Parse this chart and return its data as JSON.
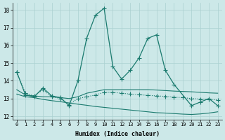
{
  "xlabel": "Humidex (Indice chaleur)",
  "bg_color": "#cce8e8",
  "line_color": "#1a7a6e",
  "grid_color": "#aad0d0",
  "xlim": [
    -0.5,
    23.5
  ],
  "ylim": [
    11.8,
    18.4
  ],
  "yticks": [
    12,
    13,
    14,
    15,
    16,
    17,
    18
  ],
  "xticks": [
    0,
    1,
    2,
    3,
    4,
    5,
    6,
    7,
    8,
    9,
    10,
    11,
    12,
    13,
    14,
    15,
    16,
    17,
    18,
    19,
    20,
    21,
    22,
    23
  ],
  "series": [
    {
      "x": [
        0,
        1,
        2,
        3,
        4,
        5,
        6,
        7,
        8,
        9,
        10,
        11,
        12,
        13,
        14,
        15,
        16,
        17,
        18,
        20,
        21,
        22,
        23
      ],
      "y": [
        14.5,
        13.2,
        13.1,
        13.6,
        13.15,
        13.05,
        12.6,
        14.0,
        16.4,
        17.7,
        18.1,
        14.8,
        14.1,
        14.6,
        15.3,
        16.4,
        16.6,
        14.6,
        13.8,
        12.6,
        12.8,
        13.0,
        12.6
      ],
      "linestyle": "-",
      "marker": true
    },
    {
      "x": [
        0,
        1,
        2,
        3,
        4,
        5,
        6,
        7,
        8,
        9,
        10,
        11,
        12,
        13,
        14,
        15,
        16,
        17,
        18,
        19,
        20,
        21,
        22,
        23
      ],
      "y": [
        13.5,
        13.2,
        13.15,
        13.1,
        13.1,
        13.05,
        13.0,
        13.1,
        13.3,
        13.4,
        13.5,
        13.5,
        13.5,
        13.5,
        13.5,
        13.5,
        13.48,
        13.45,
        13.42,
        13.4,
        13.38,
        13.35,
        13.32,
        13.3
      ],
      "linestyle": "-",
      "marker": false
    },
    {
      "x": [
        0,
        1,
        2,
        3,
        4,
        5,
        6,
        7,
        8,
        9,
        10,
        11,
        12,
        13,
        14,
        15,
        16,
        17,
        18,
        19,
        20,
        21,
        22,
        23
      ],
      "y": [
        13.25,
        13.1,
        13.05,
        12.95,
        12.88,
        12.82,
        12.75,
        12.68,
        12.62,
        12.55,
        12.5,
        12.45,
        12.4,
        12.35,
        12.3,
        12.25,
        12.2,
        12.18,
        12.15,
        12.12,
        12.1,
        12.13,
        12.18,
        12.25
      ],
      "linestyle": "-",
      "marker": false
    },
    {
      "x": [
        0,
        1,
        2,
        3,
        4,
        5,
        6,
        7,
        8,
        9,
        10,
        11,
        12,
        13,
        14,
        15,
        16,
        17,
        18,
        19,
        20,
        21,
        22,
        23
      ],
      "y": [
        14.5,
        13.3,
        13.15,
        13.5,
        13.1,
        13.0,
        12.65,
        13.0,
        13.1,
        13.2,
        13.35,
        13.35,
        13.3,
        13.25,
        13.22,
        13.18,
        13.15,
        13.12,
        13.08,
        13.05,
        13.0,
        12.97,
        12.95,
        12.92
      ],
      "linestyle": ":",
      "marker": true
    }
  ]
}
